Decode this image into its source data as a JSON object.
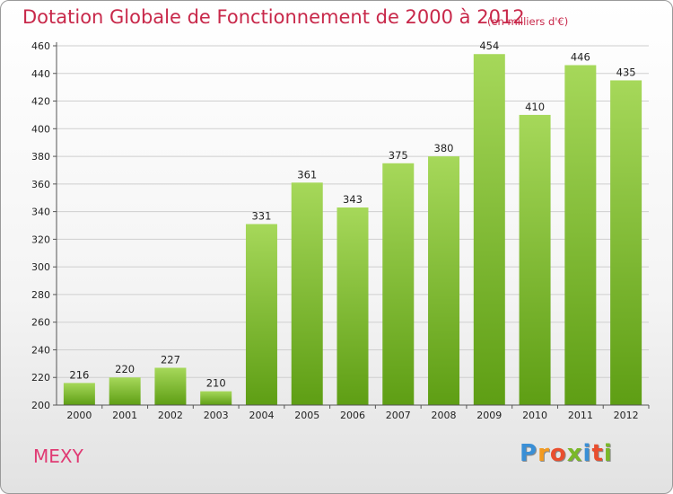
{
  "header": {
    "title": "Dotation Globale de Fonctionnement de 2000 à 2012",
    "subtitle": "(en milliers d'€)"
  },
  "footer": {
    "place": "MEXY",
    "logo": {
      "letters": [
        "P",
        "r",
        "o",
        "x",
        "i",
        "t",
        "i"
      ],
      "colors": [
        "#3a8fd6",
        "#f39a1f",
        "#e94e2e",
        "#7ab829",
        "#3a8fd6",
        "#e94e2e",
        "#7ab829"
      ]
    }
  },
  "colors": {
    "bar_top": "#a6d85a",
    "bar_bottom": "#5e9e14",
    "grid": "#cfcfcf",
    "axis": "#555555"
  },
  "chart_data": {
    "type": "bar",
    "categories": [
      "2000",
      "2001",
      "2002",
      "2003",
      "2004",
      "2005",
      "2006",
      "2007",
      "2008",
      "2009",
      "2010",
      "2011",
      "2012"
    ],
    "values": [
      216,
      220,
      227,
      210,
      331,
      361,
      343,
      375,
      380,
      454,
      410,
      446,
      435
    ],
    "data_labels": [
      "216",
      "220",
      "227",
      "210",
      "331",
      "361",
      "343",
      "375",
      "380",
      "454",
      "410",
      "446",
      "435"
    ],
    "yticks": [
      "200",
      "220",
      "240",
      "260",
      "280",
      "300",
      "320",
      "340",
      "360",
      "380",
      "400",
      "420",
      "440",
      "460"
    ],
    "ylim": [
      200,
      460
    ],
    "grid": true,
    "legend": "none"
  }
}
